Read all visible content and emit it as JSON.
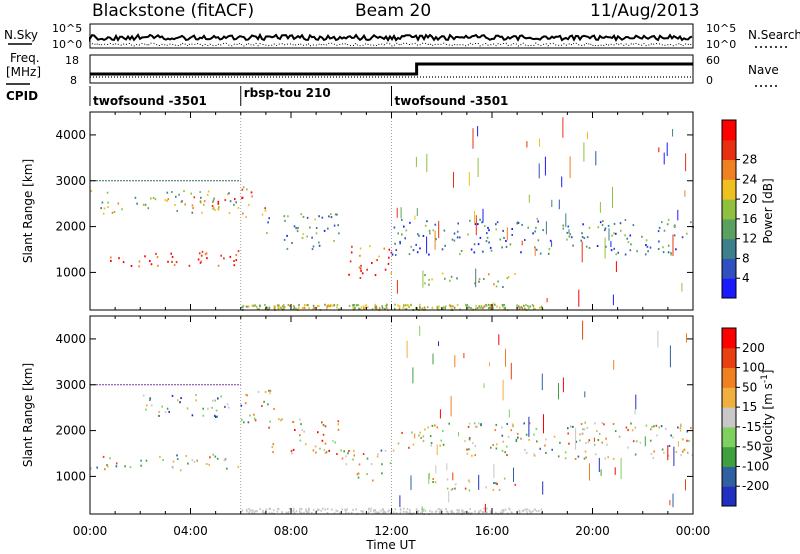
{
  "header": {
    "station": "Blackstone (fitACF)",
    "beam": "Beam 20",
    "date": "11/Aug/2013"
  },
  "aux_panels": {
    "nsky_label": "N.Sky",
    "nsearch_label": "N.Search",
    "freq_label_line1": "Freq.",
    "freq_label_line2": "[MHz]",
    "nave_label": "Nave",
    "cpid_label": "CPID",
    "noise_ticks_left": [
      "10^5",
      "10^0"
    ],
    "noise_ticks_right": [
      "10^5",
      "10^0"
    ],
    "freq_ticks": [
      "18",
      "8"
    ],
    "nave_ticks": [
      "60",
      "0"
    ]
  },
  "cpid_segments": [
    {
      "label": "twofsound -3501",
      "start": 0,
      "end": 6
    },
    {
      "label": "rbsp-tou 210",
      "start": 6,
      "end": 12
    },
    {
      "label": "twofsound -3501",
      "start": 12,
      "end": 24
    }
  ],
  "x_axis": {
    "title": "Time UT",
    "ticks": [
      "00:00",
      "04:00",
      "08:00",
      "12:00",
      "16:00",
      "20:00",
      "00:00"
    ]
  },
  "y_axis": {
    "title": "Slant Range [km]",
    "ticks": [
      "1000",
      "2000",
      "3000",
      "4000"
    ]
  },
  "power_colorbar": {
    "title": "Power [dB]",
    "ticks": [
      "4",
      "8",
      "12",
      "16",
      "20",
      "24",
      "28"
    ],
    "colors": [
      "#1a1aff",
      "#3050c0",
      "#3d7f8a",
      "#5aa060",
      "#90c040",
      "#f0c020",
      "#f08020",
      "#e83010",
      "#ff0000"
    ]
  },
  "velocity_colorbar": {
    "title_main": "Velocity [m s",
    "title_sup": "-1",
    "title_end": "]",
    "ticks": [
      "200",
      "100",
      "50",
      "15",
      "-15",
      "-50",
      "-100",
      "-200"
    ],
    "colors": [
      "#2030c0",
      "#3060a0",
      "#40a040",
      "#80d060",
      "#c8c8c8",
      "#f0b040",
      "#f08020",
      "#e84010",
      "#ff0000"
    ]
  },
  "chart_data": [
    {
      "type": "heatmap",
      "title": "Power [dB]",
      "xlabel": "Time UT",
      "ylabel": "Slant Range [km]",
      "xlim": [
        0,
        24
      ],
      "ylim": [
        180,
        4500
      ],
      "clim": [
        0,
        30
      ],
      "echo_regions": [
        {
          "t0": 0.0,
          "t1": 6.0,
          "r0": 1150,
          "r1": 1500,
          "value": 27
        },
        {
          "t0": 0.0,
          "t1": 6.0,
          "r0": 2300,
          "r1": 2800,
          "value": 14
        },
        {
          "t0": 3.5,
          "t1": 6.0,
          "r0": 2400,
          "r1": 2700,
          "value": 22
        },
        {
          "t0": 6.0,
          "t1": 7.0,
          "r0": 2200,
          "r1": 2900,
          "value": 22
        },
        {
          "t0": 7.0,
          "t1": 10.0,
          "r0": 1500,
          "r1": 2300,
          "value": 10
        },
        {
          "t0": 10.0,
          "t1": 12.0,
          "r0": 900,
          "r1": 1600,
          "value": 25
        },
        {
          "t0": 12.0,
          "t1": 24.0,
          "r0": 1400,
          "r1": 2200,
          "value": 8
        },
        {
          "t0": 13.0,
          "t1": 17.0,
          "r0": 700,
          "r1": 1000,
          "value": 16
        }
      ]
    },
    {
      "type": "heatmap",
      "title": "Velocity [m s-1]",
      "xlabel": "Time UT",
      "ylabel": "Slant Range [km]",
      "xlim": [
        0,
        24
      ],
      "ylim": [
        180,
        4500
      ],
      "clim": [
        -200,
        200
      ],
      "echo_regions": [
        {
          "t0": 0.0,
          "t1": 6.0,
          "r0": 1150,
          "r1": 1500,
          "value": 0
        },
        {
          "t0": 2.0,
          "t1": 6.0,
          "r0": 2300,
          "r1": 2800,
          "value": -80
        },
        {
          "t0": 6.0,
          "t1": 7.5,
          "r0": 2200,
          "r1": 2900,
          "value": 0
        },
        {
          "t0": 7.0,
          "t1": 10.0,
          "r0": 1500,
          "r1": 2300,
          "value": 40
        },
        {
          "t0": 10.0,
          "t1": 12.0,
          "r0": 900,
          "r1": 1600,
          "value": 0
        },
        {
          "t0": 12.0,
          "t1": 24.0,
          "r0": 1400,
          "r1": 2200,
          "value": 0
        },
        {
          "t0": 13.0,
          "t1": 17.0,
          "r0": 700,
          "r1": 1000,
          "value": 10
        }
      ]
    }
  ]
}
